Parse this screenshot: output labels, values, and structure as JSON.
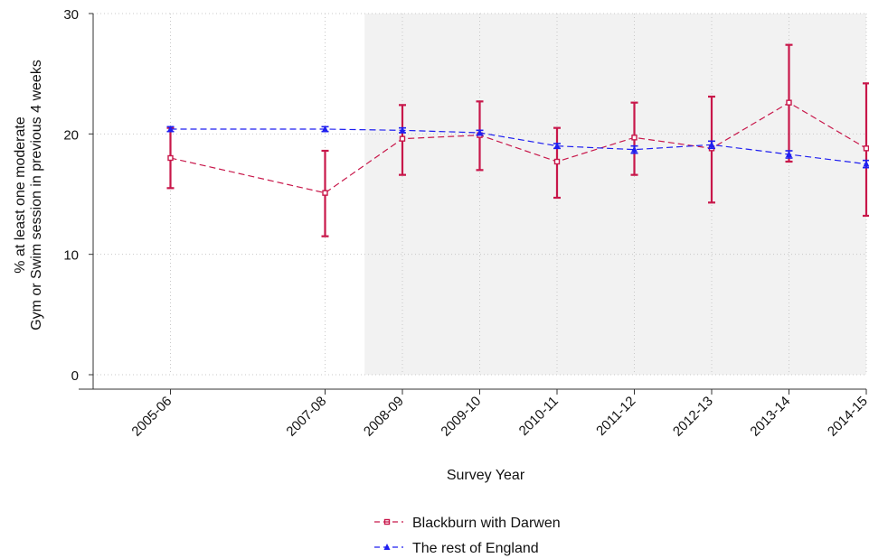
{
  "chart_data": {
    "type": "line",
    "xlabel": "Survey Year",
    "ylabel_lines": [
      "% at least one moderate",
      "Gym or Swim session in previous 4 weeks"
    ],
    "categories": [
      "2005-06",
      "2007-08",
      "2008-09",
      "2009-10",
      "2010-11",
      "2011-12",
      "2012-13",
      "2013-14",
      "2014-15"
    ],
    "x_numeric": [
      2005,
      2007,
      2008,
      2009,
      2010,
      2011,
      2012,
      2013,
      2014
    ],
    "ylim": [
      0,
      30
    ],
    "yticks": [
      0,
      10,
      20,
      30
    ],
    "grid": "dotted horizontal and vertical",
    "shaded_region": {
      "from": "2008-09",
      "to": "2014-15",
      "color": "#f2f2f2"
    },
    "legend_placement": "bottom-center",
    "series": [
      {
        "name": "Blackburn with Darwen",
        "color": "#c8174a",
        "marker": "square",
        "line_style": "dashed",
        "values": [
          18.0,
          15.1,
          19.6,
          19.9,
          17.7,
          19.7,
          18.8,
          22.6,
          18.8
        ],
        "ci_low": [
          15.5,
          11.5,
          16.6,
          17.0,
          14.7,
          16.6,
          14.3,
          17.7,
          13.2
        ],
        "ci_high": [
          20.5,
          18.6,
          22.4,
          22.7,
          20.5,
          22.6,
          23.1,
          27.4,
          24.2
        ]
      },
      {
        "name": "The rest of England",
        "color": "#1f1ff0",
        "marker": "triangle",
        "line_style": "dashed",
        "values": [
          20.4,
          20.4,
          20.3,
          20.1,
          19.0,
          18.7,
          19.1,
          18.3,
          17.5
        ],
        "ci_low": [
          20.2,
          20.2,
          20.1,
          19.9,
          18.8,
          18.4,
          18.8,
          18.0,
          17.2
        ],
        "ci_high": [
          20.6,
          20.6,
          20.5,
          20.3,
          19.2,
          19.0,
          19.4,
          18.6,
          17.8
        ]
      }
    ]
  }
}
